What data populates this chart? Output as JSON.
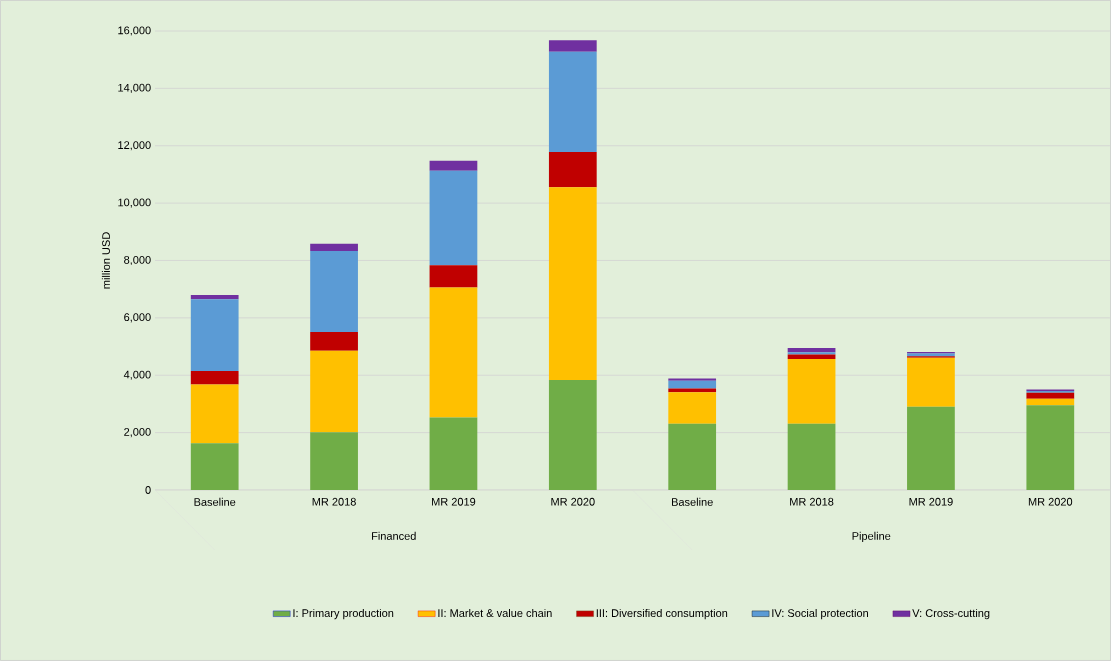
{
  "chart_data": {
    "type": "bar",
    "stacked": true,
    "ylabel": "million USD",
    "categories": [
      "Baseline",
      "MR 2018",
      "MR 2019",
      "MR 2020",
      "Baseline",
      "MR 2018",
      "MR 2019",
      "MR 2020"
    ],
    "annotations": [
      "Financed",
      "Pipeline"
    ],
    "series": [
      {
        "name": "I: Primary production",
        "color": "#70ad47",
        "values": [
          1630,
          2010,
          2530,
          3830,
          2310,
          2310,
          2900,
          2950
        ]
      },
      {
        "name": "II: Market & value chain",
        "color": "#ffc000",
        "values": [
          2050,
          2840,
          4530,
          6720,
          1100,
          2260,
          1710,
          230
        ]
      },
      {
        "name": "III: Diversified consumption",
        "color": "#c00000",
        "values": [
          470,
          660,
          770,
          1230,
          130,
          150,
          50,
          210
        ]
      },
      {
        "name": "IV: Social protection",
        "color": "#5b9bd5",
        "values": [
          2500,
          2820,
          3300,
          3500,
          270,
          80,
          100,
          60
        ]
      },
      {
        "name": "V: Cross-cutting",
        "color": "#7030a0",
        "values": [
          150,
          250,
          350,
          400,
          80,
          150,
          50,
          50
        ]
      }
    ],
    "ylim": [
      0,
      16000
    ],
    "yticks": [
      0,
      {
        "value": 2000,
        "label": "2,000"
      },
      {
        "value": 4000,
        "label": "4,000"
      },
      {
        "value": 6000,
        "label": "6,000"
      },
      {
        "value": 8000,
        "label": "8,000"
      },
      {
        "value": 10000,
        "label": "10,000"
      },
      {
        "value": 12000,
        "label": "12,000"
      },
      {
        "value": 14000,
        "label": "14,000"
      },
      {
        "value": 16000,
        "label": "16,000"
      }
    ],
    "grid": "y",
    "legend": "bottom"
  }
}
